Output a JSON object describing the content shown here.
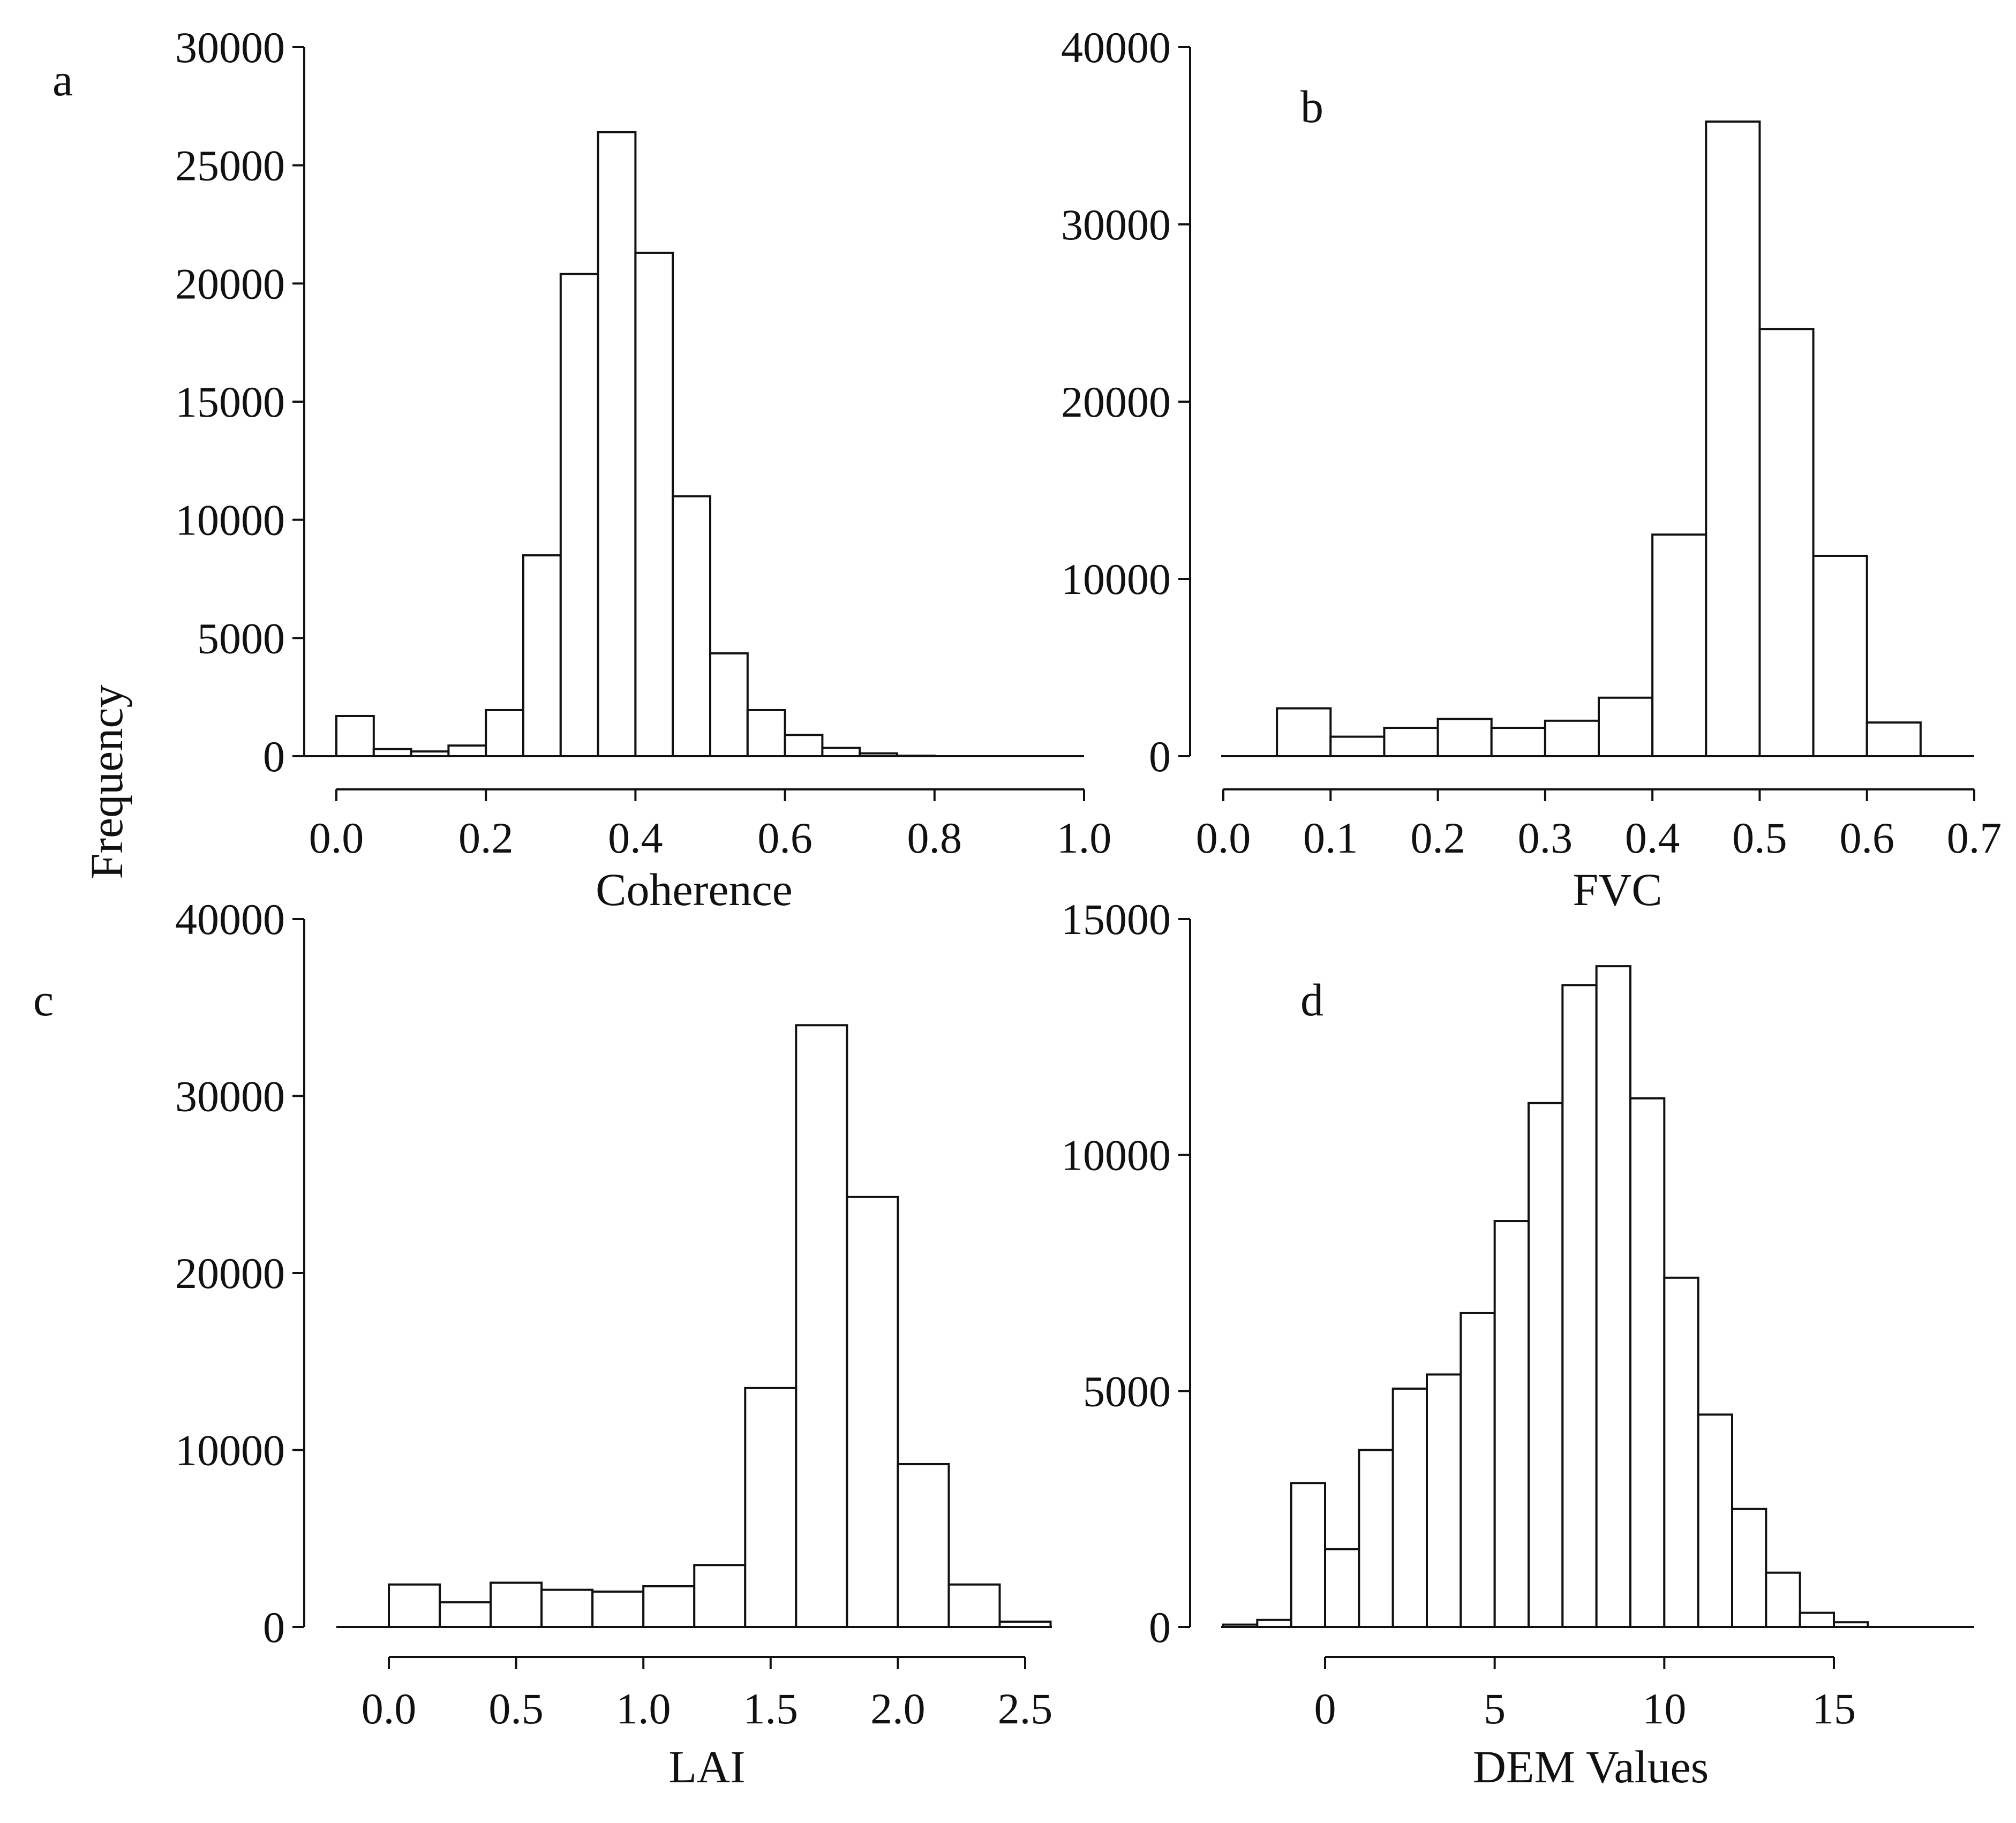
{
  "figure": {
    "ylabel": "Frequency"
  },
  "chart_data": [
    {
      "type": "bar",
      "panel": "a",
      "xlabel": "Coherence",
      "ylabel": "Frequency",
      "bin_width": 0.05,
      "bin_starts": [
        0.0,
        0.05,
        0.1,
        0.15,
        0.2,
        0.25,
        0.3,
        0.35,
        0.4,
        0.45,
        0.5,
        0.55,
        0.6,
        0.65,
        0.7,
        0.75,
        0.8,
        0.85,
        0.9,
        0.95
      ],
      "values": [
        1700,
        300,
        200,
        450,
        1950,
        8500,
        20400,
        26400,
        21300,
        11000,
        4350,
        1950,
        900,
        350,
        120,
        20,
        0,
        0,
        0,
        0
      ],
      "xlim": [
        0.0,
        1.0
      ],
      "ylim": [
        0,
        30000
      ],
      "x_ticks": [
        "0.0",
        "0.2",
        "0.4",
        "0.6",
        "0.8",
        "1.0"
      ],
      "y_ticks": [
        "0",
        "5000",
        "10000",
        "15000",
        "20000",
        "25000",
        "30000"
      ]
    },
    {
      "type": "bar",
      "panel": "b",
      "xlabel": "FVC",
      "ylabel": "Frequency",
      "bin_width": 0.05,
      "bin_starts": [
        0.05,
        0.1,
        0.15,
        0.2,
        0.25,
        0.3,
        0.35,
        0.4,
        0.45,
        0.5,
        0.55,
        0.6
      ],
      "values": [
        2700,
        1100,
        1600,
        2100,
        1600,
        2000,
        3300,
        12500,
        35800,
        24100,
        11300,
        1900
      ],
      "xlim": [
        0.0,
        0.7
      ],
      "ylim": [
        0,
        40000
      ],
      "x_ticks": [
        "0.0",
        "0.1",
        "0.2",
        "0.3",
        "0.4",
        "0.5",
        "0.6",
        "0.7"
      ],
      "y_ticks": [
        "0",
        "10000",
        "20000",
        "30000",
        "40000"
      ]
    },
    {
      "type": "bar",
      "panel": "c",
      "xlabel": "LAI",
      "ylabel": "Frequency",
      "bin_width": 0.2,
      "bin_starts": [
        0.0,
        0.2,
        0.4,
        0.6,
        0.8,
        1.0,
        1.2,
        1.4,
        1.6,
        1.8,
        2.0,
        2.2,
        2.4
      ],
      "values": [
        2400,
        1400,
        2500,
        2100,
        2000,
        2300,
        3500,
        13500,
        34000,
        24300,
        9200,
        2400,
        300
      ],
      "xlim": [
        0.0,
        2.5
      ],
      "ylim": [
        0,
        40000
      ],
      "x_ticks": [
        "0.0",
        "0.5",
        "1.0",
        "1.5",
        "2.0",
        "2.5"
      ],
      "y_ticks": [
        "0",
        "10000",
        "20000",
        "30000",
        "40000"
      ]
    },
    {
      "type": "bar",
      "panel": "d",
      "xlabel": "DEM Values",
      "ylabel": "Frequency",
      "bin_width": 1,
      "bin_starts": [
        -3,
        -2,
        -1,
        0,
        1,
        2,
        3,
        4,
        5,
        6,
        7,
        8,
        9,
        10,
        11,
        12,
        13,
        14,
        15
      ],
      "values": [
        50,
        150,
        3050,
        1650,
        3750,
        5050,
        5350,
        6650,
        8600,
        11100,
        13600,
        14000,
        11200,
        7400,
        4500,
        2500,
        1150,
        300,
        100
      ],
      "xlim": [
        0,
        15
      ],
      "ylim": [
        0,
        15000
      ],
      "x_ticks": [
        "0",
        "5",
        "10",
        "15"
      ],
      "y_ticks": [
        "0",
        "5000",
        "10000",
        "15000"
      ]
    }
  ]
}
